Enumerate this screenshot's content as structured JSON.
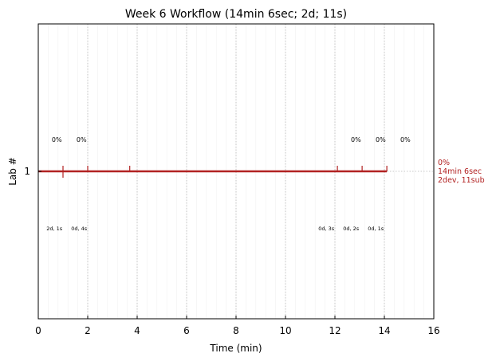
{
  "chart_data": {
    "type": "line",
    "title": "Week 6 Workflow (14min 6sec; 2d; 11s)",
    "xlabel": "Time (min)",
    "ylabel": "Lab #",
    "xlim": [
      0,
      16
    ],
    "xticks": [
      0,
      2,
      4,
      6,
      8,
      10,
      12,
      14,
      16
    ],
    "yticks": [
      1
    ],
    "grid": true,
    "color": "#b22222",
    "series": [
      {
        "lab": 1,
        "x_start": 0,
        "x_end": 14.1
      }
    ],
    "events": [
      {
        "x": 1.0,
        "kind": "dev"
      },
      {
        "x": 2.0,
        "kind": "sub"
      },
      {
        "x": 3.7,
        "kind": "sub"
      },
      {
        "x": 12.1,
        "kind": "sub"
      },
      {
        "x": 13.1,
        "kind": "sub"
      },
      {
        "x": 14.1,
        "kind": "sub"
      }
    ],
    "upper_annotations": [
      {
        "x": 0.75,
        "text": "0%"
      },
      {
        "x": 1.75,
        "text": "0%"
      },
      {
        "x": 12.85,
        "text": "0%"
      },
      {
        "x": 13.85,
        "text": "0%"
      },
      {
        "x": 14.85,
        "text": "0%"
      }
    ],
    "lower_annotations": [
      {
        "x": 0.65,
        "text": "2d, 1s"
      },
      {
        "x": 1.65,
        "text": "0d, 4s"
      },
      {
        "x": 11.65,
        "text": "0d, 3s"
      },
      {
        "x": 12.65,
        "text": "0d, 2s"
      },
      {
        "x": 13.65,
        "text": "0d, 1s"
      }
    ],
    "side_label": [
      "0%",
      "14min 6sec",
      "2dev, 11sub"
    ]
  }
}
